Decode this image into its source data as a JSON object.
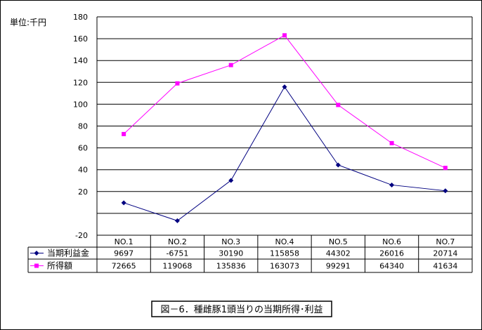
{
  "chart_data": {
    "type": "line",
    "unit_label": "単位:千円",
    "caption": "図－6．種雌豚1頭当りの当期所得･利益",
    "categories": [
      "NO.1",
      "NO.2",
      "NO.3",
      "NO.4",
      "NO.5",
      "NO.6",
      "NO.7"
    ],
    "y_ticks": [
      "180",
      "160",
      "140",
      "120",
      "100",
      "80",
      "60",
      "40",
      "20",
      "",
      "-20"
    ],
    "ylim": [
      -20,
      180
    ],
    "grid": true,
    "series": [
      {
        "name": "当期利益金",
        "color": "#000080",
        "marker": "diamond",
        "values": [
          9697,
          -6751,
          30190,
          115858,
          44302,
          26016,
          20714
        ],
        "labels": [
          "9697",
          "-6751",
          "30190",
          "115858",
          "44302",
          "26016",
          "20714"
        ]
      },
      {
        "name": "所得額",
        "color": "#FF00FF",
        "marker": "square",
        "values": [
          72665,
          119068,
          135836,
          163073,
          99291,
          64340,
          41634
        ],
        "labels": [
          "72665",
          "119068",
          "135836",
          "163073",
          "99291",
          "64340",
          "41634"
        ]
      }
    ]
  }
}
